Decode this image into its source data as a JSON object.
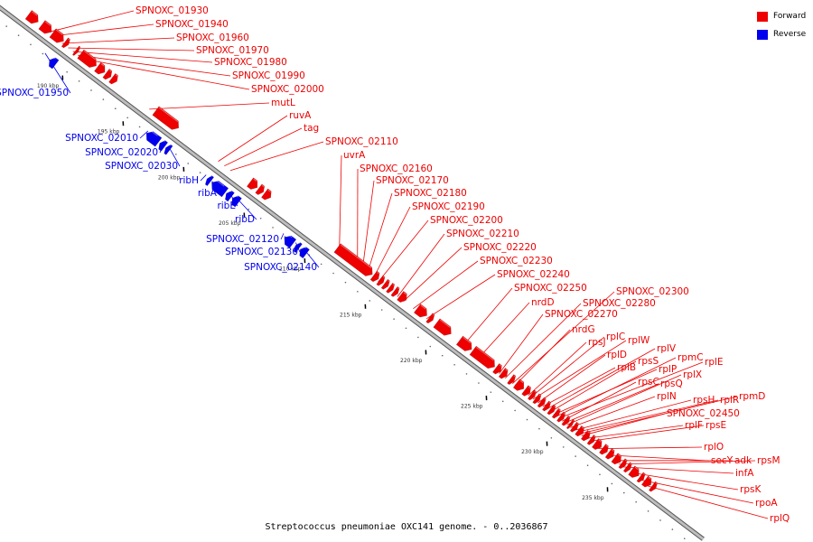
{
  "caption": "Streptococcus pneumoniae OXC141 genome. - 0..2036867",
  "legend": [
    {
      "label": "Forward",
      "color": "#ee0000"
    },
    {
      "label": "Reverse",
      "color": "#0000ee"
    }
  ],
  "colors": {
    "forward": "#ee0000",
    "reverse": "#0000ee",
    "backbone": "#888888"
  },
  "axis": {
    "unit": "kbp",
    "ticks": [
      190,
      195,
      200,
      205,
      210,
      215,
      220,
      225,
      230,
      235
    ]
  },
  "forward_labels": [
    {
      "name": "SPNOXC_01930",
      "kbp": 187.4
    },
    {
      "name": "SPNOXC_01940",
      "kbp": 187.8
    },
    {
      "name": "SPNOXC_01960",
      "kbp": 188.6
    },
    {
      "name": "SPNOXC_01970",
      "kbp": 189.1
    },
    {
      "name": "SPNOXC_01980",
      "kbp": 189.5
    },
    {
      "name": "SPNOXC_01990",
      "kbp": 189.9
    },
    {
      "name": "SPNOXC_02000",
      "kbp": 190.3
    },
    {
      "name": "mutL",
      "kbp": 195.8
    },
    {
      "name": "ruvA",
      "kbp": 201.5
    },
    {
      "name": "tag",
      "kbp": 202.0
    },
    {
      "name": "SPNOXC_02110",
      "kbp": 202.5
    },
    {
      "name": "uvrA",
      "kbp": 211.5
    },
    {
      "name": "SPNOXC_02160",
      "kbp": 213.0
    },
    {
      "name": "SPNOXC_02170",
      "kbp": 213.4
    },
    {
      "name": "SPNOXC_02180",
      "kbp": 213.8
    },
    {
      "name": "SPNOXC_02190",
      "kbp": 214.3
    },
    {
      "name": "SPNOXC_02200",
      "kbp": 214.7
    },
    {
      "name": "SPNOXC_02210",
      "kbp": 216.3
    },
    {
      "name": "SPNOXC_02220",
      "kbp": 216.8
    },
    {
      "name": "SPNOXC_02230",
      "kbp": 217.6
    },
    {
      "name": "SPNOXC_02240",
      "kbp": 218.7
    },
    {
      "name": "SPNOXC_02250",
      "kbp": 221.7
    },
    {
      "name": "nrdD",
      "kbp": 223.0
    },
    {
      "name": "SPNOXC_02270",
      "kbp": 224.7
    },
    {
      "name": "SPNOXC_02280",
      "kbp": 225.2
    },
    {
      "name": "SPNOXC_02300",
      "kbp": 225.8
    },
    {
      "name": "nrdG",
      "kbp": 226.0
    },
    {
      "name": "rpsJ",
      "kbp": 227.1
    },
    {
      "name": "rplC",
      "kbp": 227.3
    },
    {
      "name": "rplW",
      "kbp": 227.5
    },
    {
      "name": "rplD",
      "kbp": 227.9
    },
    {
      "name": "rplB",
      "kbp": 228.3
    },
    {
      "name": "rplV",
      "kbp": 228.6
    },
    {
      "name": "rpsS",
      "kbp": 228.9
    },
    {
      "name": "rplP",
      "kbp": 229.2
    },
    {
      "name": "rpmC",
      "kbp": 229.4
    },
    {
      "name": "rplE",
      "kbp": 229.6
    },
    {
      "name": "rpsC",
      "kbp": 229.9
    },
    {
      "name": "rpsQ",
      "kbp": 230.1
    },
    {
      "name": "rplX",
      "kbp": 230.3
    },
    {
      "name": "rplN",
      "kbp": 230.6
    },
    {
      "name": "rpsH",
      "kbp": 230.9
    },
    {
      "name": "rplR",
      "kbp": 231.1
    },
    {
      "name": "rpmD",
      "kbp": 231.3
    },
    {
      "name": "SPNOXC_02450",
      "kbp": 231.5
    },
    {
      "name": "rplF",
      "kbp": 231.8
    },
    {
      "name": "rpsE",
      "kbp": 232.1
    },
    {
      "name": "rplO",
      "kbp": 232.9
    },
    {
      "name": "secY",
      "kbp": 233.6
    },
    {
      "name": "adk",
      "kbp": 234.2
    },
    {
      "name": "rpsM",
      "kbp": 234.6
    },
    {
      "name": "infA",
      "kbp": 234.9
    },
    {
      "name": "rpsK",
      "kbp": 235.5
    },
    {
      "name": "rpoA",
      "kbp": 236.3
    },
    {
      "name": "rplQ",
      "kbp": 237.0
    }
  ],
  "reverse_labels": [
    {
      "name": "SPNOXC_01950",
      "kbp": 188.1
    },
    {
      "name": "SPNOXC_02010",
      "kbp": 196.6
    },
    {
      "name": "SPNOXC_02020",
      "kbp": 197.9
    },
    {
      "name": "SPNOXC_02030",
      "kbp": 198.3
    },
    {
      "name": "ribH",
      "kbp": 201.4
    },
    {
      "name": "ribA",
      "kbp": 202.3
    },
    {
      "name": "ribE",
      "kbp": 203.3
    },
    {
      "name": "ribD",
      "kbp": 203.9
    },
    {
      "name": "SPNOXC_02120",
      "kbp": 207.8
    },
    {
      "name": "SPNOXC_02130",
      "kbp": 208.8
    },
    {
      "name": "SPNOXC_02140",
      "kbp": 209.4
    }
  ],
  "forward_genes": [
    {
      "start": 185.7,
      "end": 186.5
    },
    {
      "start": 186.8,
      "end": 187.6
    },
    {
      "start": 187.7,
      "end": 188.6
    },
    {
      "start": 188.7,
      "end": 189.0
    },
    {
      "start": 189.6,
      "end": 189.8
    },
    {
      "start": 190.0,
      "end": 191.3
    },
    {
      "start": 191.4,
      "end": 192.0
    },
    {
      "start": 192.1,
      "end": 192.5
    },
    {
      "start": 192.6,
      "end": 193.0
    },
    {
      "start": 196.2,
      "end": 198.1
    },
    {
      "start": 204.0,
      "end": 204.6
    },
    {
      "start": 204.7,
      "end": 205.1
    },
    {
      "start": 205.2,
      "end": 205.7
    },
    {
      "start": 211.2,
      "end": 214.1
    },
    {
      "start": 214.2,
      "end": 214.6
    },
    {
      "start": 214.7,
      "end": 215.0
    },
    {
      "start": 215.1,
      "end": 215.4
    },
    {
      "start": 215.5,
      "end": 215.8
    },
    {
      "start": 215.9,
      "end": 216.2
    },
    {
      "start": 216.4,
      "end": 216.9
    },
    {
      "start": 217.8,
      "end": 218.6
    },
    {
      "start": 218.8,
      "end": 219.1
    },
    {
      "start": 219.4,
      "end": 220.6
    },
    {
      "start": 221.3,
      "end": 222.3
    },
    {
      "start": 222.4,
      "end": 224.2
    },
    {
      "start": 224.3,
      "end": 224.7
    },
    {
      "start": 224.8,
      "end": 225.2
    },
    {
      "start": 225.5,
      "end": 225.8
    },
    {
      "start": 226.0,
      "end": 226.6
    },
    {
      "start": 226.7,
      "end": 227.1
    },
    {
      "start": 227.2,
      "end": 227.5
    },
    {
      "start": 227.6,
      "end": 227.9
    },
    {
      "start": 228.0,
      "end": 228.3
    },
    {
      "start": 228.4,
      "end": 228.7
    },
    {
      "start": 228.8,
      "end": 229.1
    },
    {
      "start": 229.2,
      "end": 229.5
    },
    {
      "start": 229.6,
      "end": 229.9
    },
    {
      "start": 230.0,
      "end": 230.3
    },
    {
      "start": 230.4,
      "end": 230.6
    },
    {
      "start": 230.7,
      "end": 231.0
    },
    {
      "start": 231.1,
      "end": 231.5
    },
    {
      "start": 231.6,
      "end": 232.0
    },
    {
      "start": 232.1,
      "end": 232.4
    },
    {
      "start": 232.5,
      "end": 233.0
    },
    {
      "start": 233.1,
      "end": 233.5
    },
    {
      "start": 233.6,
      "end": 234.0
    },
    {
      "start": 234.1,
      "end": 234.6
    },
    {
      "start": 234.7,
      "end": 235.0
    },
    {
      "start": 235.1,
      "end": 235.4
    },
    {
      "start": 235.5,
      "end": 236.1
    },
    {
      "start": 236.2,
      "end": 236.5
    },
    {
      "start": 236.6,
      "end": 237.1
    },
    {
      "start": 237.2,
      "end": 237.5
    }
  ],
  "reverse_genes": [
    {
      "start": 188.6,
      "end": 189.1
    },
    {
      "start": 196.6,
      "end": 197.6
    },
    {
      "start": 197.7,
      "end": 198.1
    },
    {
      "start": 198.2,
      "end": 198.5
    },
    {
      "start": 201.6,
      "end": 201.9
    },
    {
      "start": 202.0,
      "end": 203.1
    },
    {
      "start": 203.2,
      "end": 203.6
    },
    {
      "start": 203.7,
      "end": 204.2
    },
    {
      "start": 208.0,
      "end": 208.7
    },
    {
      "start": 208.9,
      "end": 209.2
    },
    {
      "start": 209.3,
      "end": 209.8
    }
  ]
}
